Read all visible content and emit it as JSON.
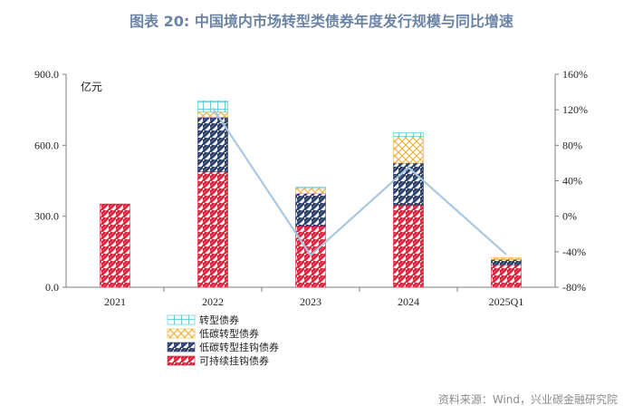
{
  "title": "图表 20: 中国境内市场转型类债券年度发行规模与同比增速",
  "source": "资料来源：Wind，兴业碳金融研究院",
  "colors": {
    "sustainability_linked": "#d8263f",
    "low_carbon_transition_linked": "#2d3f66",
    "low_carbon_transition": "#f2b441",
    "transition": "#43c5cf",
    "growth_line": "#a9c8e2",
    "axis": "#7f7f7f"
  },
  "chart_data": {
    "type": "bar",
    "stacked": true,
    "categories": [
      "2021",
      "2022",
      "2023",
      "2024",
      "2025Q1"
    ],
    "y_unit_label": "亿元",
    "ylim": [
      0,
      900
    ],
    "yticks": [
      "0.0",
      "300.0",
      "600.0",
      "900.0"
    ],
    "y2lim": [
      -80,
      160
    ],
    "y2ticks": [
      "-80%",
      "-40%",
      "0%",
      "40%",
      "80%",
      "120%",
      "160%"
    ],
    "series": [
      {
        "name": "可持续挂钩债券",
        "key": "sustainability_linked",
        "pattern": "hatch",
        "values": [
          352,
          488,
          258,
          347,
          95
        ]
      },
      {
        "name": "低碳转型挂钩债券",
        "key": "low_carbon_transition_linked",
        "pattern": "hatch",
        "values": [
          0,
          230,
          138,
          178,
          22
        ]
      },
      {
        "name": "低碳转型债券",
        "key": "low_carbon_transition",
        "pattern": "cross",
        "values": [
          0,
          22,
          22,
          112,
          8
        ]
      },
      {
        "name": "转型债券",
        "key": "transition",
        "pattern": "grid",
        "values": [
          0,
          48,
          5,
          16,
          0
        ]
      }
    ],
    "growth_line": {
      "values": [
        null,
        122,
        -44,
        55,
        -43
      ],
      "axis": "right"
    },
    "grid": false,
    "legend_position": "bottom-left"
  }
}
